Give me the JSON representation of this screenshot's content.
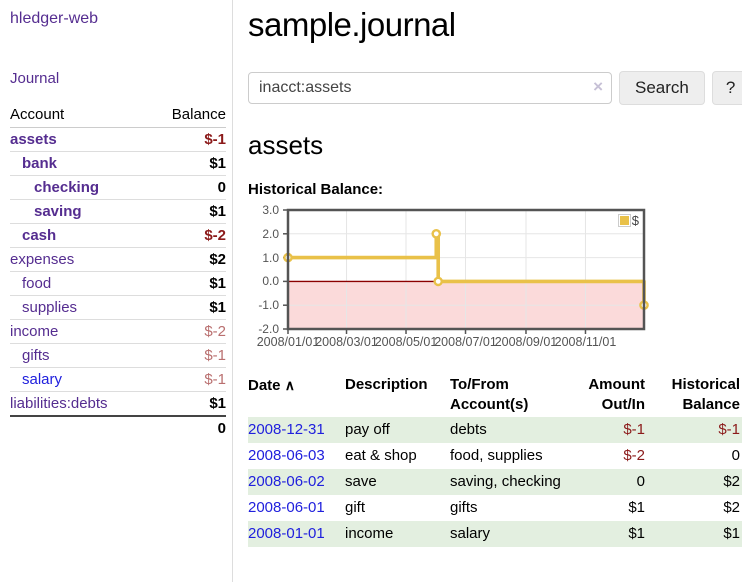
{
  "app": {
    "brand": "hledger-web",
    "nav_journal": "Journal"
  },
  "sidebar": {
    "header": {
      "account": "Account",
      "balance": "Balance"
    },
    "accounts": [
      {
        "name": "assets",
        "indent": 0,
        "bold": true,
        "link_color": "purple",
        "balance": "$-1",
        "balance_style": "neg-strong"
      },
      {
        "name": "bank",
        "indent": 1,
        "bold": true,
        "link_color": "purple",
        "balance": "$1",
        "balance_style": "pos"
      },
      {
        "name": "checking",
        "indent": 2,
        "bold": true,
        "link_color": "purple",
        "balance": "0",
        "balance_style": "pos"
      },
      {
        "name": "saving",
        "indent": 2,
        "bold": true,
        "link_color": "purple",
        "balance": "$1",
        "balance_style": "pos"
      },
      {
        "name": "cash",
        "indent": 1,
        "bold": true,
        "link_color": "purple",
        "balance": "$-2",
        "balance_style": "neg-strong"
      },
      {
        "name": "expenses",
        "indent": 0,
        "bold": false,
        "link_color": "purple",
        "balance": "$2",
        "balance_style": "pos"
      },
      {
        "name": "food",
        "indent": 1,
        "bold": false,
        "link_color": "purple",
        "balance": "$1",
        "balance_style": "pos"
      },
      {
        "name": "supplies",
        "indent": 1,
        "bold": false,
        "link_color": "purple",
        "balance": "$1",
        "balance_style": "pos"
      },
      {
        "name": "income",
        "indent": 0,
        "bold": false,
        "link_color": "purple",
        "balance": "$-2",
        "balance_style": "neg-soft"
      },
      {
        "name": "gifts",
        "indent": 1,
        "bold": false,
        "link_color": "purple",
        "balance": "$-1",
        "balance_style": "neg-soft"
      },
      {
        "name": "salary",
        "indent": 1,
        "bold": false,
        "link_color": "blue",
        "balance": "$-1",
        "balance_style": "neg-soft"
      },
      {
        "name": "liabilities:debts",
        "indent": 0,
        "bold": false,
        "link_color": "purple",
        "balance": "$1",
        "balance_style": "pos"
      }
    ],
    "total": "0"
  },
  "main": {
    "title": "sample.journal",
    "search": {
      "value": "inacct:assets",
      "clear_icon": "×",
      "button_label": "Search",
      "help_label": "?"
    },
    "account_heading": "assets",
    "chart_title": "Historical Balance:"
  },
  "chart_data": {
    "type": "line",
    "title": "Historical Balance:",
    "step": true,
    "series": [
      {
        "name": "$",
        "color": "#e9c149",
        "points": [
          [
            "2008-01-01",
            1.0
          ],
          [
            "2008-06-01",
            2.0
          ],
          [
            "2008-06-03",
            0.0
          ],
          [
            "2008-12-31",
            -1.0
          ]
        ]
      }
    ],
    "x_ticks": [
      "2008/01/01",
      "2008/03/01",
      "2008/05/01",
      "2008/07/01",
      "2008/09/01",
      "2008/11/01"
    ],
    "y_ticks": [
      3.0,
      2.0,
      1.0,
      0.0,
      -1.0,
      -2.0
    ],
    "ylim": [
      -2,
      3
    ],
    "x_range_days": 365,
    "x_start": "2008-01-01",
    "grid": true,
    "legend_position": "top-right",
    "colors": {
      "grid": "#e6e6e6",
      "border": "#545454",
      "tick": "#545454",
      "negative_region": "#fbdada",
      "zero_line": "#8b0000",
      "marker_fill": "#ffffff"
    }
  },
  "register": {
    "headers": {
      "date": "Date",
      "sort_indicator": "∧",
      "description": "Description",
      "accounts": "To/From Account(s)",
      "amount": "Amount Out/In",
      "balance": "Historical Balance"
    },
    "rows": [
      {
        "date": "2008-12-31",
        "description": "pay off",
        "accounts": "debts",
        "amount": "$-1",
        "amount_neg": true,
        "balance": "$-1",
        "balance_neg": true
      },
      {
        "date": "2008-06-03",
        "description": "eat & shop",
        "accounts": "food, supplies",
        "amount": "$-2",
        "amount_neg": true,
        "balance": "0",
        "balance_neg": false
      },
      {
        "date": "2008-06-02",
        "description": "save",
        "accounts": "saving, checking",
        "amount": "0",
        "amount_neg": false,
        "balance": "$2",
        "balance_neg": false
      },
      {
        "date": "2008-06-01",
        "description": "gift",
        "accounts": "gifts",
        "amount": "$1",
        "amount_neg": false,
        "balance": "$2",
        "balance_neg": false
      },
      {
        "date": "2008-01-01",
        "description": "income",
        "accounts": "salary",
        "amount": "$1",
        "amount_neg": false,
        "balance": "$1",
        "balance_neg": false
      }
    ]
  }
}
